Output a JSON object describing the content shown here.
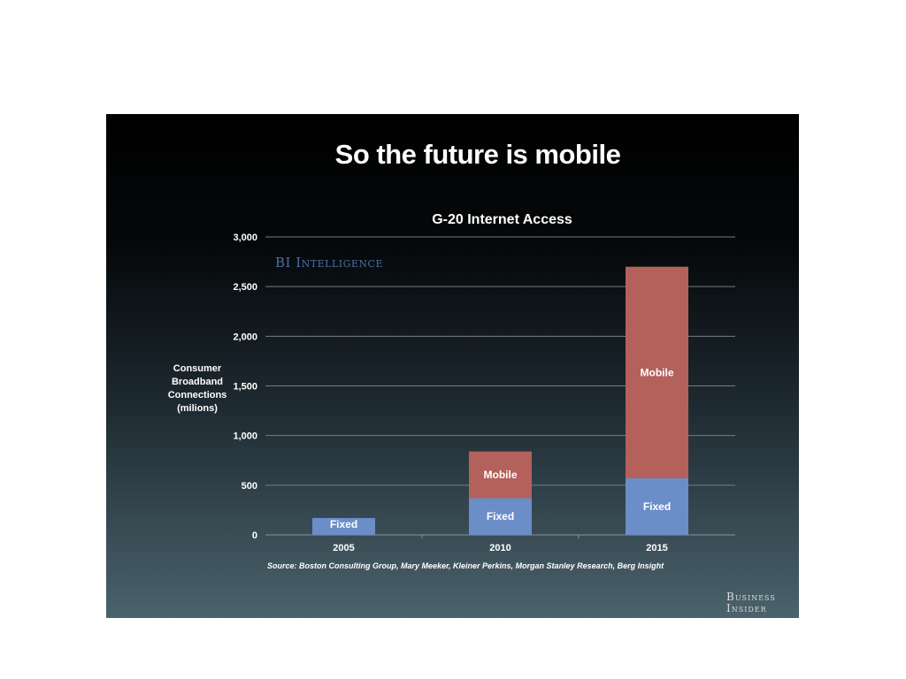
{
  "slide": {
    "title": "So the future is mobile",
    "source": "Source: Boston Consulting Group, Mary Meeker, Kleiner Perkins, Morgan Stanley Research, Berg Insight",
    "logo_line1": "Business",
    "logo_line2": "Insider",
    "watermark": "BI Intelligence"
  },
  "chart_data": {
    "type": "bar",
    "stacked": true,
    "title": "G-20 Internet Access",
    "xlabel": "",
    "ylabel": [
      "Consumer",
      "Broadband",
      "Connections",
      "(milions)"
    ],
    "categories": [
      "2005",
      "2010",
      "2015"
    ],
    "series": [
      {
        "name": "Fixed",
        "values": [
          170,
          370,
          570
        ],
        "color": "#6b8dc8",
        "labels": [
          "Fixed",
          "Fixed",
          "Fixed"
        ]
      },
      {
        "name": "Mobile",
        "values": [
          0,
          470,
          2130
        ],
        "color": "#b4615c",
        "labels": [
          "",
          "Mobile",
          "Mobile"
        ]
      }
    ],
    "ylim": [
      0,
      3000
    ],
    "yticks": [
      0,
      500,
      1000,
      1500,
      2000,
      2500,
      3000
    ],
    "ytick_labels": [
      "0",
      "500",
      "1,000",
      "1,500",
      "2,000",
      "2,500",
      "3,000"
    ],
    "grid": true,
    "legend": "none"
  }
}
